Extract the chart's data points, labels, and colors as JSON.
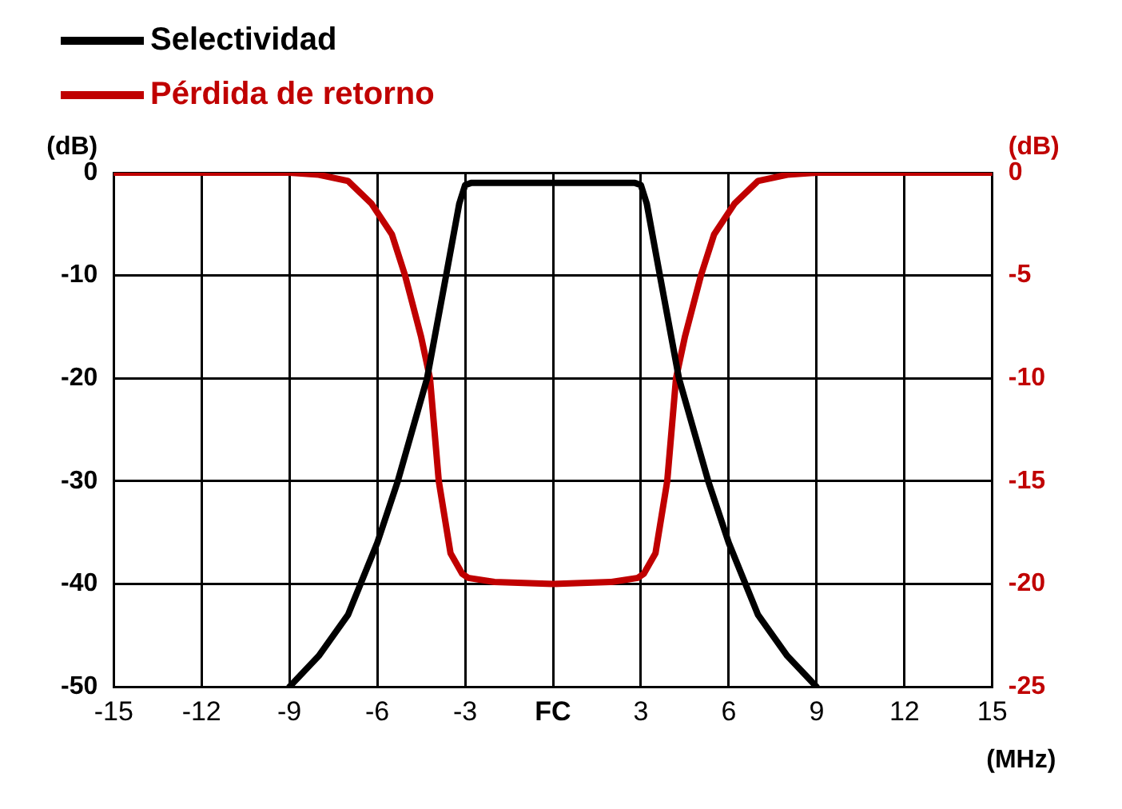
{
  "chart_data": {
    "type": "line",
    "xlabel": "(MHz)",
    "ylabel": "(dB)",
    "y2label": "(dB)",
    "xlim": [
      -15,
      15
    ],
    "xticks": [
      -15,
      -12,
      -9,
      -6,
      -3,
      {
        "value": 0,
        "label": "FC"
      },
      3,
      6,
      9,
      12,
      15
    ],
    "ylim": [
      -50,
      0
    ],
    "yticks": [
      -50,
      -40,
      -30,
      -20,
      -10,
      0
    ],
    "y2lim": [
      -25,
      0
    ],
    "y2ticks": [
      -25,
      -20,
      -15,
      -10,
      -5,
      0
    ],
    "grid": true,
    "legend": "top left",
    "marker": "none",
    "line_style": "solid",
    "series": [
      {
        "name": "Selectividad",
        "color": "#000000",
        "x": [
          -9,
          -8,
          -7,
          -6,
          -5.3,
          -4.3,
          -3.65,
          -3.2,
          -3,
          -2.8,
          0,
          2.8,
          3,
          3.2,
          3.65,
          4.3,
          5.3,
          6,
          7,
          8,
          9
        ],
        "values": [
          -50,
          -47,
          -43,
          -36,
          -30,
          -20,
          -10,
          -3,
          -1.2,
          -1,
          -1,
          -1,
          -1.2,
          -3,
          -10,
          -20,
          -30,
          -36,
          -43,
          -47,
          -50
        ]
      },
      {
        "name": "Pérdida de retorno",
        "color": "#c00000",
        "axis": "y2",
        "x": [
          -15,
          -9,
          -8,
          -7,
          -6.2,
          -5.5,
          -5.05,
          -4.5,
          -4.2,
          -3.9,
          -3.5,
          -3.1,
          -2.9,
          -2,
          0,
          2,
          2.9,
          3.1,
          3.5,
          3.9,
          4.2,
          4.5,
          5.05,
          5.5,
          6.2,
          7,
          8,
          9,
          15
        ],
        "values": [
          0,
          0,
          -0.1,
          -0.4,
          -1.5,
          -3,
          -5,
          -8,
          -10,
          -15,
          -18.5,
          -19.5,
          -19.7,
          -19.9,
          -20,
          -19.9,
          -19.7,
          -19.5,
          -18.5,
          -15,
          -10,
          -8,
          -5,
          -3,
          -1.5,
          -0.4,
          -0.1,
          0,
          0
        ]
      }
    ]
  }
}
